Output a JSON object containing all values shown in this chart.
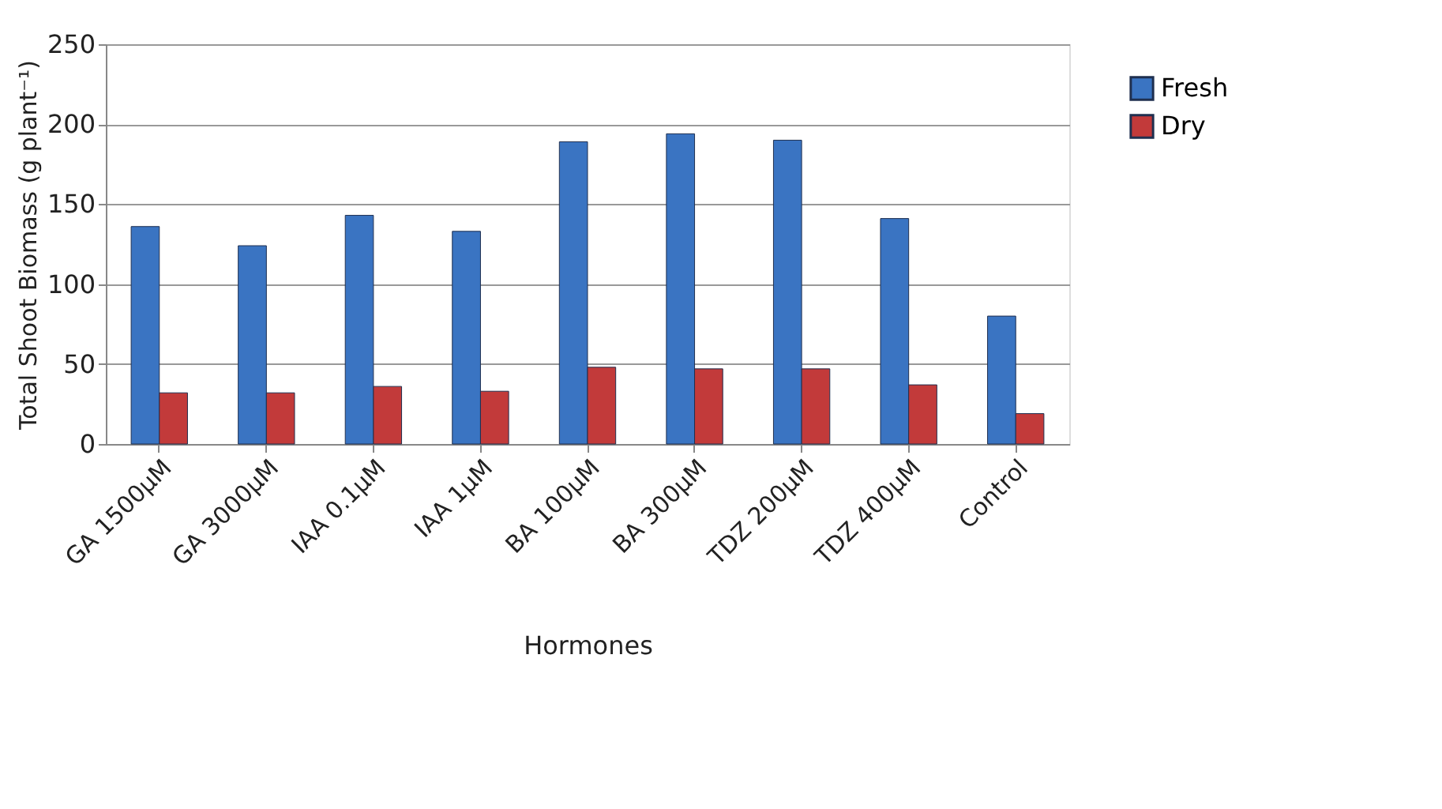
{
  "chart_data": {
    "type": "bar",
    "xlabel": "Hormones",
    "ylabel": "Total Shoot Biomass (g plant⁻¹)",
    "categories": [
      "GA 1500µM",
      "GA 3000µM",
      "IAA 0.1µM",
      "IAA 1µM",
      "BA 100µM",
      "BA 300µM",
      "TDZ 200µM",
      "TDZ 400µM",
      "Control"
    ],
    "series": [
      {
        "name": "Fresh",
        "color": "#3a74c2",
        "values": [
          136,
          124,
          143,
          133,
          189,
          194,
          190,
          141,
          80
        ]
      },
      {
        "name": "Dry",
        "color": "#c23a3a",
        "values": [
          32,
          32,
          36,
          33,
          48,
          47,
          47,
          37,
          19
        ]
      }
    ],
    "ylim": [
      0,
      250
    ],
    "yticks": [
      0,
      50,
      100,
      150,
      200,
      250
    ],
    "grid": "y",
    "legend": "right"
  }
}
